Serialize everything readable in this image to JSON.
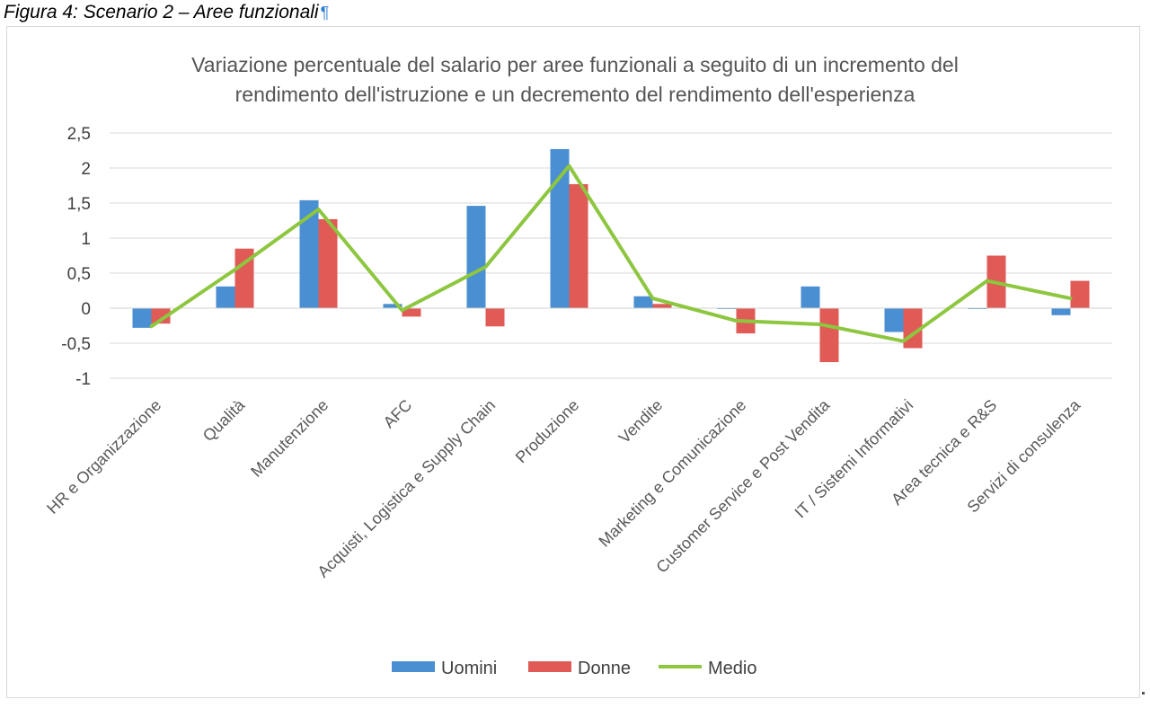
{
  "caption": {
    "text": "Figura 4: Scenario 2 – Aree funzionali",
    "mark": "¶"
  },
  "chart_data": {
    "type": "bar",
    "title_lines": [
      "Variazione percentuale del salario per aree funzionali a seguito di un incremento del",
      "rendimento dell'istruzione e un decremento del rendimento dell'esperienza"
    ],
    "categories": [
      "HR e Organizzazione",
      "Qualità",
      "Manutenzione",
      "AFC",
      "Acquisti, Logistica e Supply Chain",
      "Produzione",
      "Vendite",
      "Marketing e Comunicazione",
      "Customer Service e Post Vendita",
      "IT / Sistemi Informativi",
      "Area tecnica e R&S",
      "Servizi di consulenza"
    ],
    "series": [
      {
        "name": "Uomini",
        "kind": "bar",
        "color": "#4a8fd1",
        "values": [
          -0.28,
          0.31,
          1.54,
          0.06,
          1.46,
          2.27,
          0.17,
          -0.01,
          0.31,
          -0.34,
          -0.01,
          -0.1
        ]
      },
      {
        "name": "Donne",
        "kind": "bar",
        "color": "#e05a56",
        "values": [
          -0.22,
          0.85,
          1.27,
          -0.12,
          -0.26,
          1.77,
          0.06,
          -0.36,
          -0.77,
          -0.57,
          0.75,
          0.39
        ]
      },
      {
        "name": "Medio",
        "kind": "line",
        "color": "#8dc63f",
        "values": [
          -0.26,
          0.55,
          1.41,
          -0.03,
          0.59,
          2.03,
          0.14,
          -0.18,
          -0.23,
          -0.47,
          0.39,
          0.14
        ]
      }
    ],
    "yticks": [
      "2,5",
      "2",
      "1,5",
      "1",
      "0,5",
      "0",
      "-0,5",
      "-1"
    ],
    "ylim": [
      -1,
      2.5
    ],
    "xlabel": "",
    "ylabel": "",
    "grid": true,
    "legend_position": "bottom"
  }
}
